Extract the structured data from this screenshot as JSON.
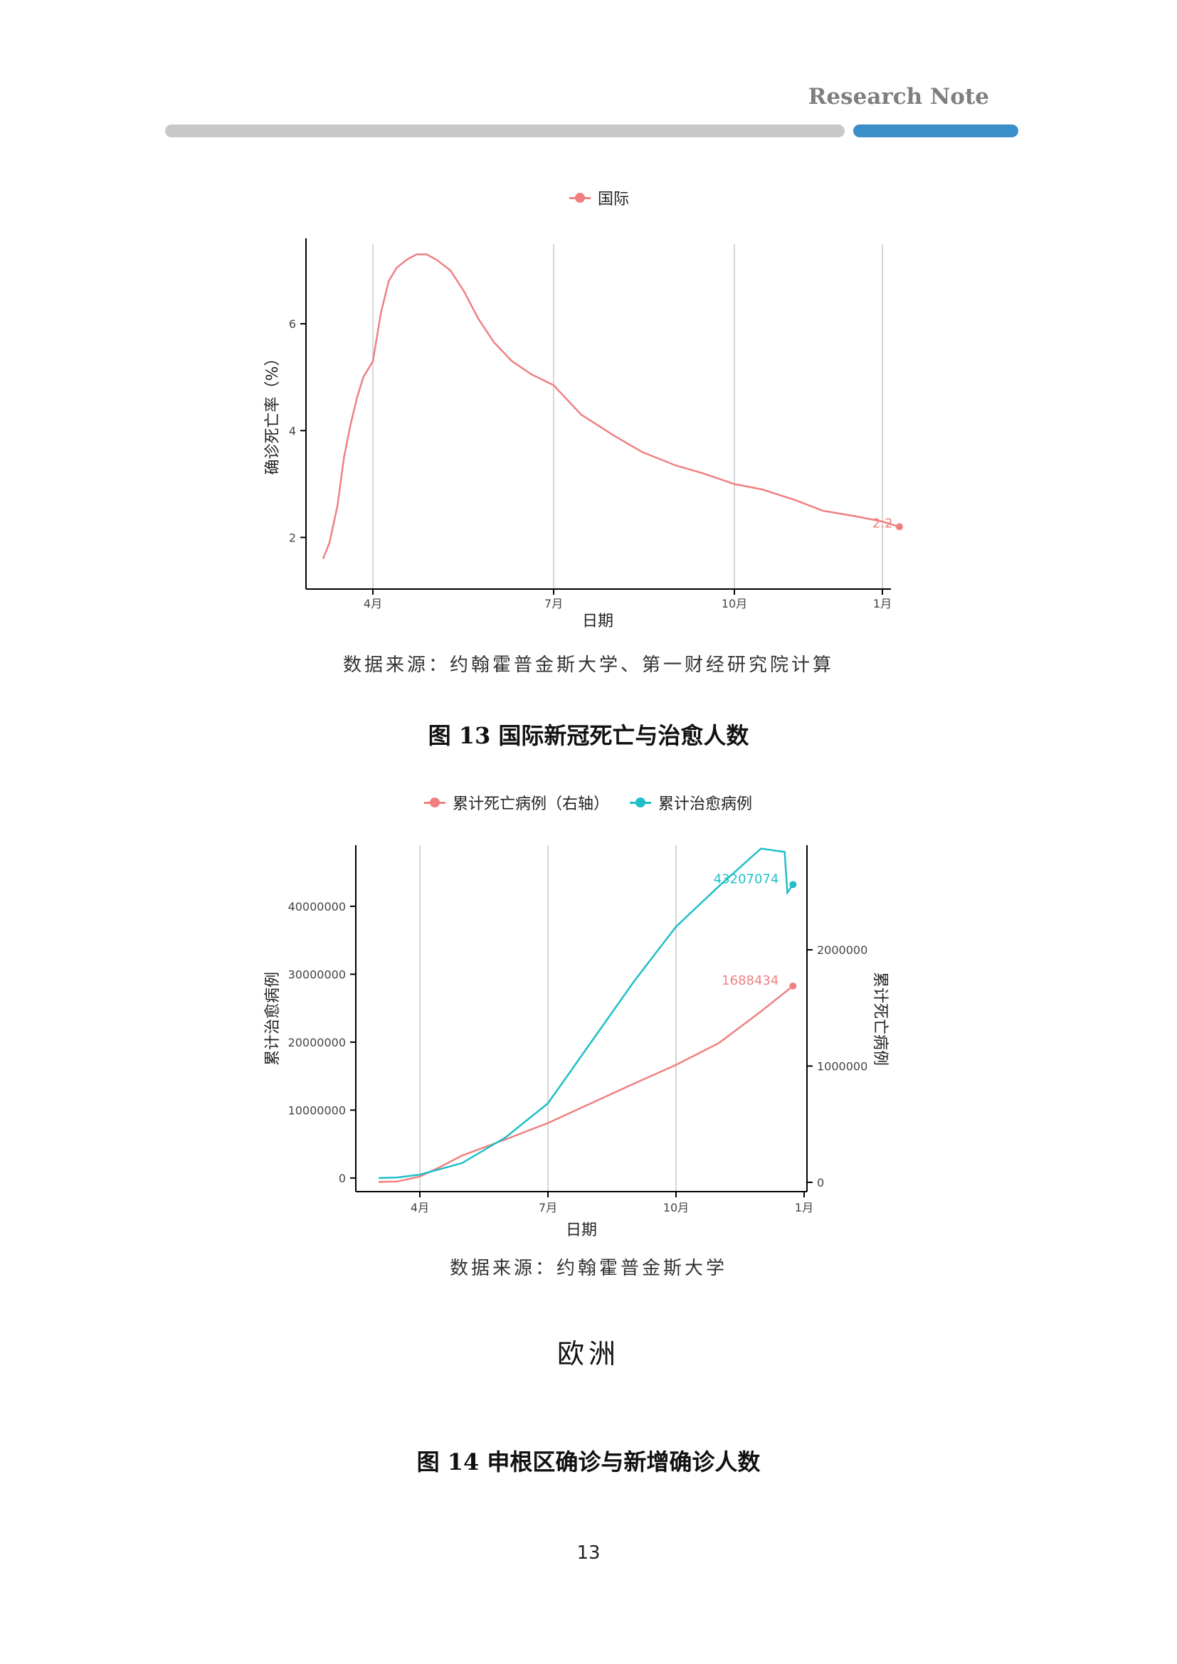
{
  "header": {
    "label": "Research Note",
    "bar_colors": {
      "grey": "#c8c8c8",
      "blue": "#3a8fc8"
    }
  },
  "chart1": {
    "legend": "国际",
    "source": "数据来源：约翰霍普金斯大学、第一财经研究院计算"
  },
  "fig13_title": "图 13 国际新冠死亡与治愈人数",
  "chart2": {
    "legend_deaths": "累计死亡病例（右轴）",
    "legend_recovered": "累计治愈病例",
    "source": "数据来源：约翰霍普金斯大学"
  },
  "section_title": "欧洲",
  "fig14_title": "图 14 申根区确诊与新增确诊人数",
  "page_number": "13",
  "chart_data": [
    {
      "type": "line",
      "title": "",
      "xlabel": "日期",
      "ylabel": "确诊死亡率（%）",
      "x_ticks": [
        "4月",
        "7月",
        "10月",
        "1月"
      ],
      "y_ticks": [
        2,
        4,
        6
      ],
      "xlim": [
        "2020-03-01",
        "2021-01-01"
      ],
      "ylim": [
        1.3,
        7.6
      ],
      "end_label": "2.2",
      "grid": "vertical",
      "colors": {
        "series": "#f08080"
      },
      "series": [
        {
          "name": "国际",
          "x": [
            "2020-03-01",
            "2020-03-05",
            "2020-03-10",
            "2020-03-14",
            "2020-03-18",
            "2020-03-22",
            "2020-03-26",
            "2020-04-01",
            "2020-04-05",
            "2020-04-09",
            "2020-04-13",
            "2020-04-18",
            "2020-04-23",
            "2020-04-28",
            "2020-05-03",
            "2020-05-10",
            "2020-05-17",
            "2020-05-24",
            "2020-06-01",
            "2020-06-10",
            "2020-06-20",
            "2020-07-01",
            "2020-07-15",
            "2020-08-01",
            "2020-08-15",
            "2020-09-01",
            "2020-09-15",
            "2020-10-01",
            "2020-10-15",
            "2020-11-01",
            "2020-11-15",
            "2020-12-01",
            "2020-12-15",
            "2020-12-24"
          ],
          "y": [
            1.6,
            1.9,
            2.6,
            3.5,
            4.1,
            4.6,
            5.0,
            5.3,
            6.2,
            6.8,
            7.05,
            7.2,
            7.3,
            7.3,
            7.2,
            7.0,
            6.6,
            6.1,
            5.65,
            5.3,
            5.05,
            4.85,
            4.3,
            3.9,
            3.6,
            3.35,
            3.2,
            3.0,
            2.9,
            2.7,
            2.5,
            2.4,
            2.3,
            2.2
          ]
        }
      ]
    },
    {
      "type": "line",
      "title": "",
      "xlabel": "日期",
      "ylabel": "累计治愈病例",
      "ylabel_right": "累计死亡病例",
      "x_ticks": [
        "4月",
        "7月",
        "10月",
        "1月"
      ],
      "y_ticks_left": [
        0,
        10000000,
        20000000,
        30000000,
        40000000
      ],
      "y_ticks_right": [
        0,
        1000000,
        2000000
      ],
      "xlim": [
        "2020-03-01",
        "2021-01-01"
      ],
      "ylim_left": [
        -2000000,
        49000000
      ],
      "ylim_right": [
        -80000,
        2900000
      ],
      "grid": "vertical",
      "colors": {
        "deaths": "#f08080",
        "recovered": "#1fbfc9"
      },
      "series": [
        {
          "name": "累计死亡病例（右轴）",
          "axis": "right",
          "x": [
            "2020-03-01",
            "2020-03-15",
            "2020-04-01",
            "2020-04-15",
            "2020-05-01",
            "2020-06-01",
            "2020-07-01",
            "2020-08-01",
            "2020-09-01",
            "2020-10-01",
            "2020-11-01",
            "2020-12-01",
            "2020-12-24"
          ],
          "y": [
            3000,
            7000,
            50000,
            130000,
            230000,
            370000,
            510000,
            680000,
            850000,
            1010000,
            1200000,
            1470000,
            1688434
          ],
          "end_label": "1688434"
        },
        {
          "name": "累计治愈病例",
          "axis": "left",
          "x": [
            "2020-03-01",
            "2020-03-15",
            "2020-04-01",
            "2020-05-01",
            "2020-06-01",
            "2020-07-01",
            "2020-08-01",
            "2020-09-01",
            "2020-10-01",
            "2020-11-01",
            "2020-12-01",
            "2020-12-18",
            "2020-12-20",
            "2020-12-24"
          ],
          "y": [
            0,
            80000,
            500000,
            2200000,
            6000000,
            11000000,
            20000000,
            29000000,
            37000000,
            43000000,
            48500000,
            48000000,
            42000000,
            43207074
          ],
          "end_label": "43207074"
        }
      ]
    }
  ]
}
